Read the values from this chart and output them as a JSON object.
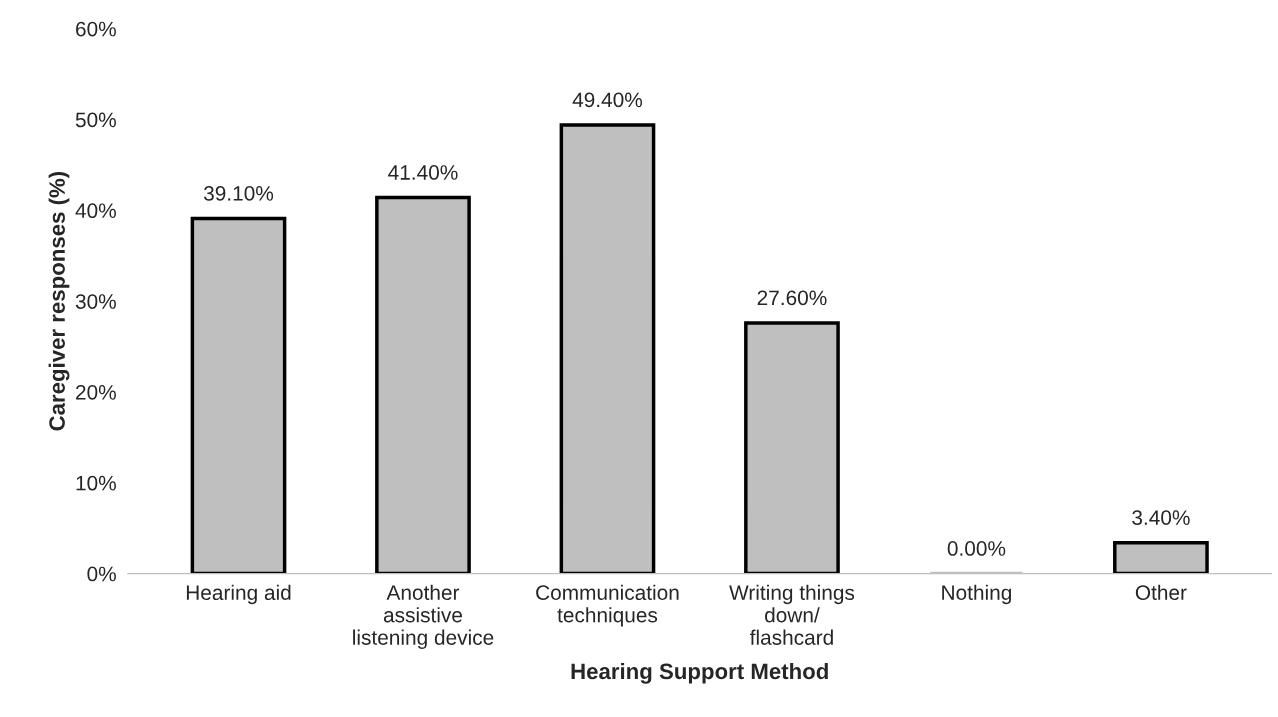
{
  "chart_data": {
    "type": "bar",
    "xlabel": "Hearing Support Method",
    "ylabel": "Caregiver responses (%)",
    "categories": [
      "Hearing aid",
      "Another\nassistive\nlistening device",
      "Communication\ntechniques",
      "Writing things\ndown/\nflashcard",
      "Nothing",
      "Other"
    ],
    "values": [
      39.1,
      41.4,
      49.4,
      27.6,
      0.0,
      3.4
    ],
    "value_labels": [
      "39.10%",
      "41.40%",
      "49.40%",
      "27.60%",
      "0.00%",
      "3.40%"
    ],
    "color": "#bfbfbf",
    "ylim": [
      0,
      60
    ],
    "yticks": [
      {
        "value": 0,
        "label": "0%"
      },
      {
        "value": 10,
        "label": "10%"
      },
      {
        "value": 20,
        "label": "20%"
      },
      {
        "value": 30,
        "label": "30%"
      },
      {
        "value": 40,
        "label": "40%"
      },
      {
        "value": 50,
        "label": "50%"
      },
      {
        "value": 60,
        "label": "60%"
      }
    ],
    "grid": false,
    "legend": false
  }
}
